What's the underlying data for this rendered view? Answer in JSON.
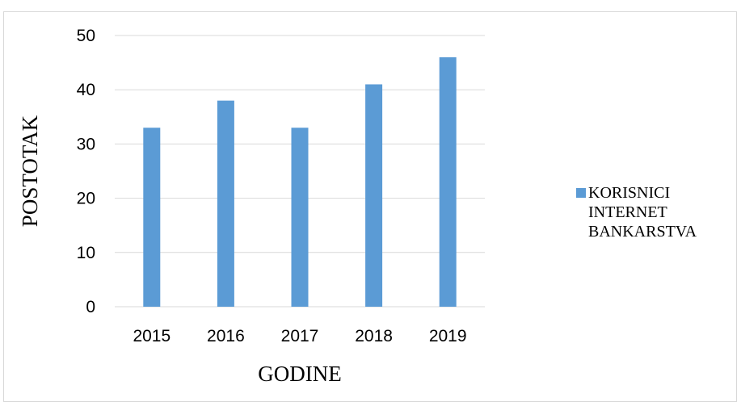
{
  "chart_data": {
    "type": "bar",
    "categories": [
      "2015",
      "2016",
      "2017",
      "2018",
      "2019"
    ],
    "series": [
      {
        "name": "KORISNICI INTERNET BANKARSTVA",
        "values": [
          33,
          38,
          33,
          41,
          46
        ],
        "color": "#5b9bd5"
      }
    ],
    "title": "",
    "xlabel": "GODINE",
    "ylabel": "POSTOTAK",
    "ylim": [
      0,
      50
    ],
    "yticks": [
      0,
      10,
      20,
      30,
      40,
      50
    ],
    "grid": true,
    "legend_position": "right",
    "gridline_color": "#d9d9d9"
  }
}
